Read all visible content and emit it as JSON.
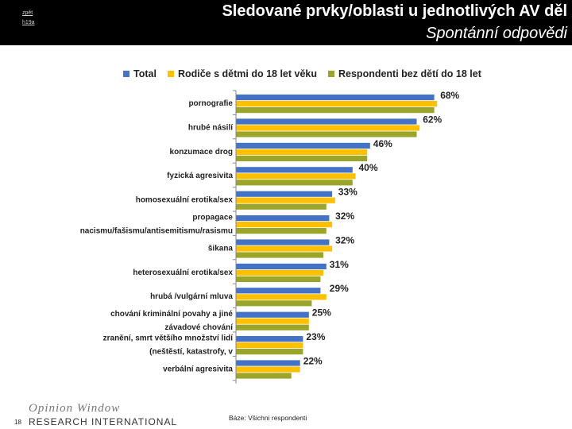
{
  "header": {
    "small_top": "zpět",
    "small_bottom": "h19a",
    "title_line1": "Sledované prvky/oblasti u jednotlivých AV děl",
    "title_line2": "Spontánní odpovědi"
  },
  "footer": {
    "page_number": "18",
    "logo_line1": "Opinion Window",
    "logo_line2": "RESEARCH INTERNATIONAL",
    "base_note": "Báze: Všichni respondenti"
  },
  "colors": {
    "Total": "#4472c4",
    "Rodice": "#ffc000",
    "Respondenti": "#9aa52a"
  },
  "chart_data": {
    "type": "bar",
    "orientation": "horizontal",
    "categories": [
      [
        "pornografie"
      ],
      [
        "hrubé násilí"
      ],
      [
        "konzumace drog"
      ],
      [
        "fyzická agresivita"
      ],
      [
        "homosexuální erotika/sex"
      ],
      [
        "propagace",
        "nacismu/fašismu/antisemitismu/rasismu"
      ],
      [
        "šikana"
      ],
      [
        "heterosexuální erotika/sex"
      ],
      [
        "hrubá /vulgární mluva"
      ],
      [
        "chování kriminální povahy a jiné",
        "závadové chování"
      ],
      [
        "zranění, smrt většího množství lidí",
        "(neštěstí, katastrofy, v"
      ],
      [
        "verbální agresivita"
      ]
    ],
    "series": [
      {
        "name": "Total",
        "values": [
          68,
          62,
          46,
          40,
          33,
          32,
          32,
          31,
          29,
          25,
          23,
          22
        ]
      },
      {
        "name": "Rodiče s dětmi do 18 let věku",
        "values": [
          69,
          63,
          45,
          41,
          34,
          33,
          33,
          30,
          31,
          25,
          23,
          22
        ]
      },
      {
        "name": "Respondenti bez dětí do 18 let",
        "values": [
          68,
          62,
          45,
          40,
          31,
          31,
          30,
          29,
          26,
          25,
          23,
          19
        ]
      }
    ],
    "value_labels": [
      "68%",
      "62%",
      "46%",
      "40%",
      "33%",
      "32%",
      "32%",
      "31%",
      "29%",
      "25%",
      "23%",
      "22%"
    ],
    "xlim": [
      0,
      80
    ],
    "legend_position": "top",
    "grid": false
  }
}
